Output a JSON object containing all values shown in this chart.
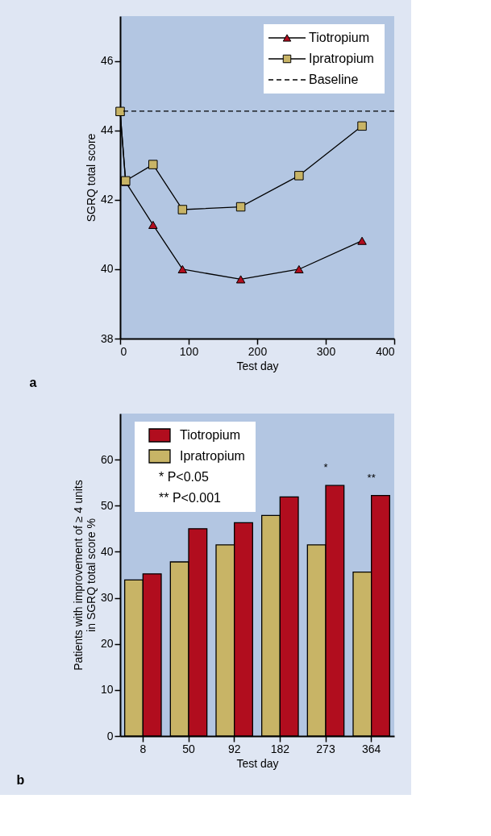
{
  "chart_data": [
    {
      "type": "line",
      "title": "a",
      "xlabel": "Test day",
      "ylabel": "SGRQ total score",
      "x": [
        0,
        8,
        48,
        91,
        176,
        261,
        353
      ],
      "series": [
        {
          "name": "Tiotropium",
          "color": "#b10d1e",
          "marker": "triangle",
          "values": [
            44.55,
            42.52,
            41.28,
            40.0,
            39.71,
            40.0,
            40.82
          ]
        },
        {
          "name": "Ipratropium",
          "color": "#c8b466",
          "marker": "square",
          "values": [
            44.55,
            42.55,
            43.02,
            41.72,
            41.8,
            42.7,
            44.13
          ]
        }
      ],
      "ref_lines": [
        {
          "axis": "y",
          "value": 44.56,
          "label": "Baseline",
          "line_style": "dashed",
          "color": "#000000"
        }
      ],
      "line_style": "solid",
      "xlim": [
        0,
        400
      ],
      "xticks": [
        0,
        100,
        200,
        300,
        400
      ],
      "ylim": [
        38,
        47.3
      ],
      "yticks": [
        38,
        40,
        42,
        44,
        46
      ],
      "grid": false,
      "legend": "top right"
    },
    {
      "type": "bar",
      "title": "b",
      "xlabel": "Test day",
      "ylabel": "Patients with improvement of ≥ 4 units\nin SGRQ total score %",
      "categories": [
        "8",
        "50",
        "92",
        "182",
        "273",
        "364"
      ],
      "series": [
        {
          "name": "Ipratropium",
          "color": "#c8b466",
          "values": [
            33.9,
            37.8,
            41.5,
            47.9,
            41.5,
            35.6
          ]
        },
        {
          "name": "Tiotropium",
          "color": "#b10d1e",
          "values": [
            35.2,
            45.0,
            46.3,
            51.9,
            54.4,
            52.2
          ]
        }
      ],
      "annotations": [
        "* P<0.05",
        "** P<0.001",
        {
          "text": "*",
          "x": "273",
          "y": 54.4
        },
        {
          "text": "**",
          "x": "364",
          "y": 52.2
        }
      ],
      "ylim": [
        0,
        70
      ],
      "yticks": [
        0,
        10,
        20,
        30,
        40,
        50,
        60
      ],
      "grid": false,
      "legend": "top left"
    }
  ]
}
